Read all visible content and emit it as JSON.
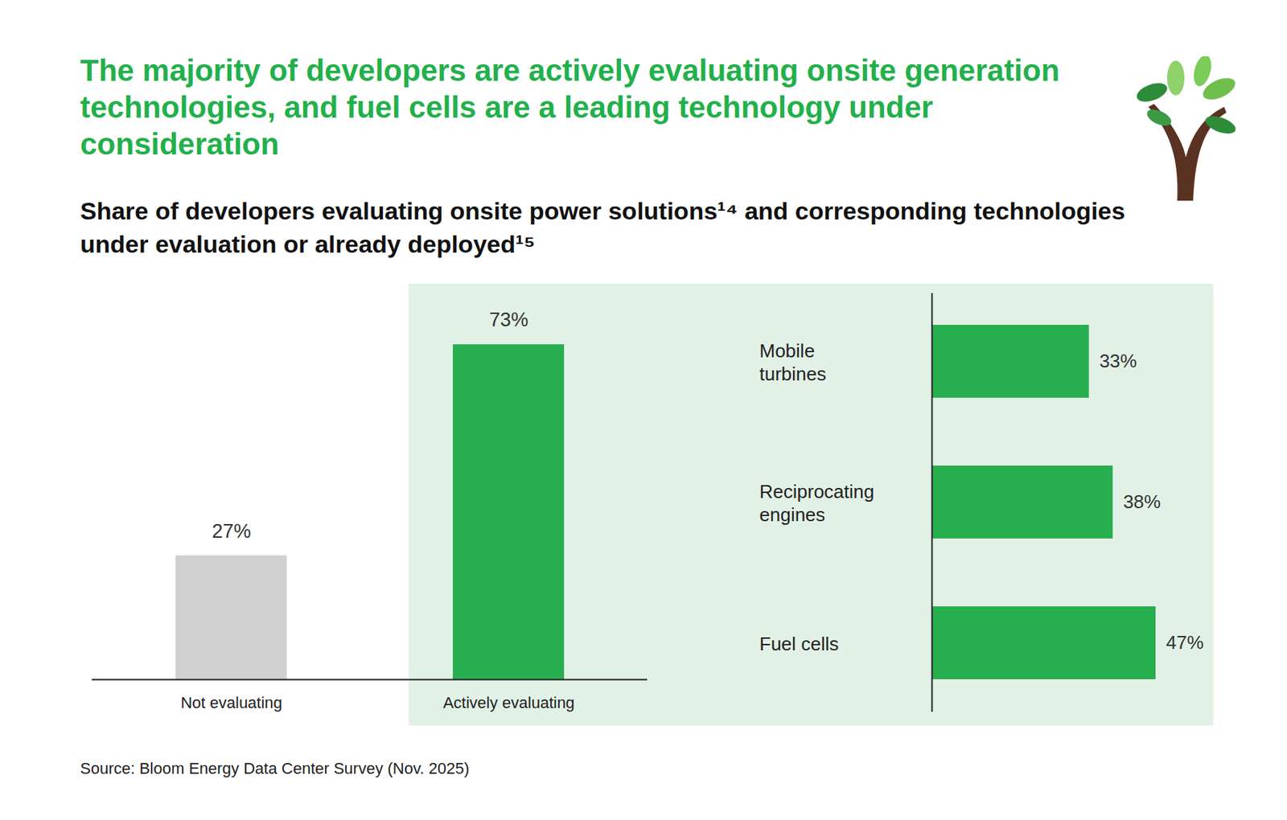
{
  "title": "The majority of developers are actively evaluating onsite generation technologies, and fuel cells are a leading technology under consideration",
  "subtitle": "Share of developers evaluating onsite power solutions¹⁴ and corresponding technologies under evaluation or already deployed¹⁵",
  "source": "Source: Bloom Energy Data Center Survey (Nov. 2025)",
  "chart_data": [
    {
      "type": "bar",
      "categories": [
        "Not evaluating",
        "Actively evaluating"
      ],
      "values": [
        27,
        73
      ],
      "value_labels": [
        "27%",
        "73%"
      ],
      "colors": [
        "#d1d1d1",
        "#27ae4f"
      ],
      "ylim": [
        0,
        73
      ],
      "data_labels": true,
      "tick_labels": "x"
    },
    {
      "type": "bar",
      "orientation": "horizontal",
      "categories": [
        "Mobile turbines",
        "Reciprocating engines",
        "Fuel cells"
      ],
      "values": [
        33,
        38,
        47
      ],
      "value_labels": [
        "33%",
        "38%",
        "47%"
      ],
      "color": "#27ae4f",
      "xlim": [
        0,
        47
      ],
      "data_labels": true,
      "tick_labels": "y"
    }
  ]
}
